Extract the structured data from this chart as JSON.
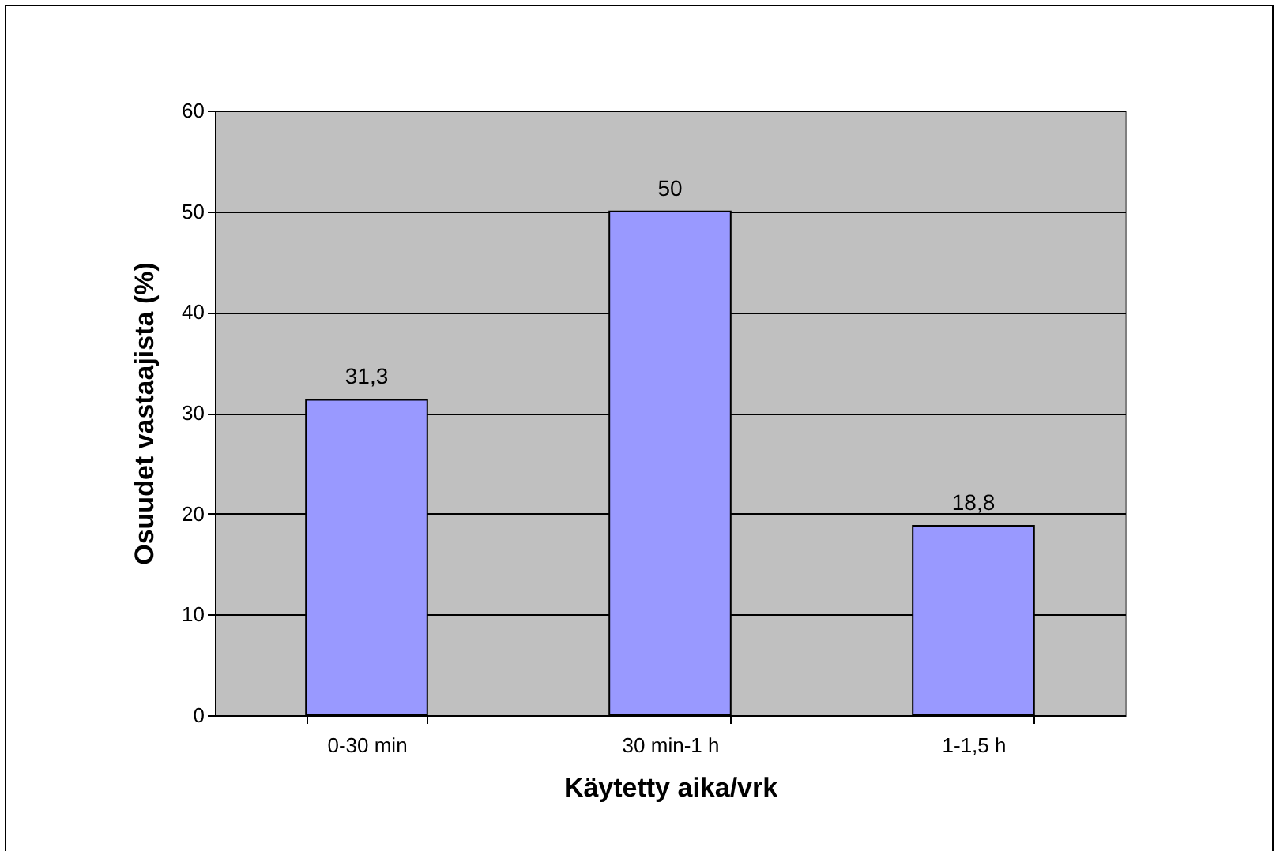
{
  "chart_data": {
    "type": "bar",
    "xlabel": "Käytetty aika/vrk",
    "ylabel": "Osuudet vastaajista (%)",
    "categories": [
      "0-30 min",
      "30 min-1 h",
      "1-1,5 h"
    ],
    "values": [
      31.3,
      50,
      18.8
    ],
    "value_labels": [
      "31,3",
      "50",
      "18,8"
    ],
    "color": "#9999ff",
    "ylim": [
      0,
      60
    ],
    "yticks": [
      0,
      10,
      20,
      30,
      40,
      50,
      60
    ],
    "grid": "y"
  }
}
